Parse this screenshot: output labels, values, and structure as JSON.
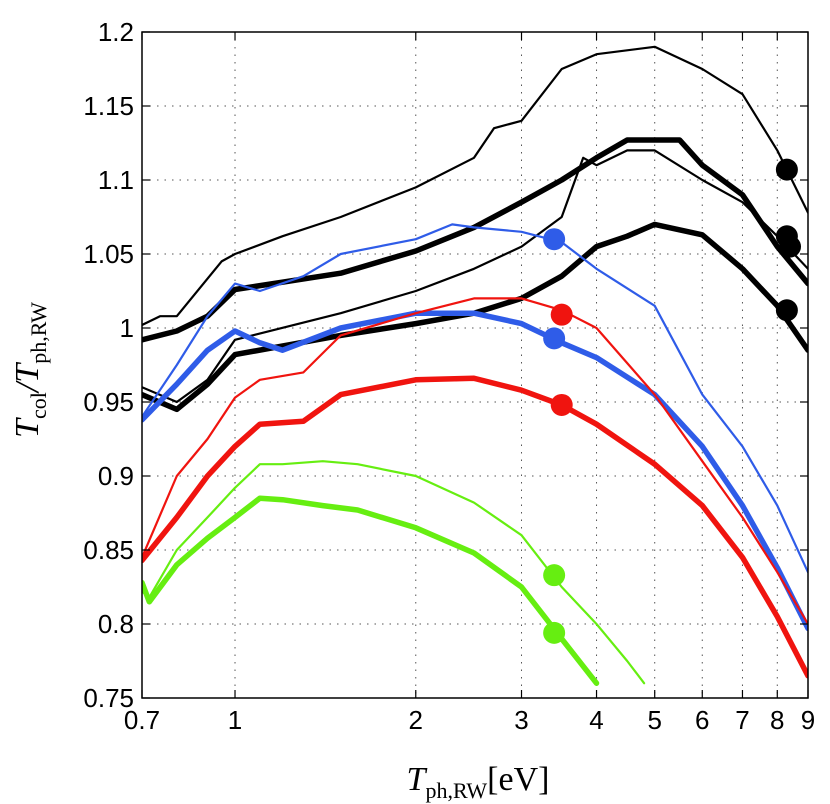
{
  "chart_data": {
    "type": "line",
    "title": "",
    "xscale": "log",
    "xlim": [
      0.7,
      9
    ],
    "ylim": [
      0.75,
      1.2
    ],
    "grid": true,
    "xticks": [
      0.7,
      1,
      2,
      3,
      4,
      5,
      6,
      7,
      8,
      9
    ],
    "xticklabels": [
      "0.7",
      "1",
      "2",
      "3",
      "4",
      "5",
      "6",
      "7",
      "8",
      "9"
    ],
    "yticks": [
      0.75,
      0.8,
      0.85,
      0.9,
      0.95,
      1.0,
      1.05,
      1.1,
      1.15,
      1.2
    ],
    "yticklabels": [
      "0.75",
      "0.8",
      "0.85",
      "0.9",
      "0.95",
      "1",
      "1.05",
      "1.1",
      "1.15",
      "1.2"
    ],
    "xlabel": {
      "main": "T",
      "sub": "ph,RW",
      "unit": "[eV]"
    },
    "ylabel": {
      "main": "T",
      "sub": "col",
      "mid": "/T",
      "sub2": "ph,RW"
    },
    "colors": {
      "black": "#000000",
      "blue": "#2f5ce8",
      "red": "#f0140f",
      "green": "#66ee11"
    },
    "series": [
      {
        "name": "black-thin-1",
        "color": "#000000",
        "width": "thin",
        "x": [
          0.7,
          0.75,
          0.8,
          0.95,
          1.0,
          1.2,
          1.5,
          2.0,
          2.5,
          2.7,
          3.0,
          3.5,
          4.0,
          5.0,
          6.0,
          7.0,
          8.0,
          9.0
        ],
        "y": [
          1.002,
          1.008,
          1.008,
          1.045,
          1.05,
          1.062,
          1.075,
          1.095,
          1.115,
          1.135,
          1.14,
          1.175,
          1.185,
          1.19,
          1.175,
          1.158,
          1.12,
          1.078
        ],
        "marker": {
          "x": 8.3,
          "y": 1.107
        }
      },
      {
        "name": "black-thin-2",
        "color": "#000000",
        "width": "thin",
        "x": [
          0.7,
          0.8,
          0.9,
          1.0,
          1.5,
          2.0,
          2.5,
          3.0,
          3.5,
          3.8,
          4.0,
          4.5,
          5.0,
          6.0,
          7.0,
          8.0,
          9.0
        ],
        "y": [
          0.96,
          0.95,
          0.965,
          0.992,
          1.01,
          1.025,
          1.04,
          1.055,
          1.075,
          1.115,
          1.11,
          1.12,
          1.12,
          1.1,
          1.085,
          1.062,
          1.04
        ],
        "marker": {
          "x": 8.3,
          "y": 1.062
        }
      },
      {
        "name": "black-thick-1",
        "color": "#000000",
        "width": "thick",
        "x": [
          0.7,
          0.8,
          0.9,
          1.0,
          1.5,
          2.0,
          2.5,
          3.0,
          3.5,
          4.0,
          4.5,
          5.0,
          5.5,
          6.0,
          7.0,
          8.0,
          9.0
        ],
        "y": [
          0.992,
          0.998,
          1.008,
          1.026,
          1.037,
          1.052,
          1.068,
          1.085,
          1.1,
          1.115,
          1.127,
          1.127,
          1.127,
          1.11,
          1.09,
          1.055,
          1.03
        ],
        "marker": {
          "x": 8.4,
          "y": 1.055
        }
      },
      {
        "name": "black-thick-2",
        "color": "#000000",
        "width": "thick",
        "x": [
          0.7,
          0.8,
          0.9,
          1.0,
          1.5,
          2.0,
          2.5,
          3.0,
          3.5,
          4.0,
          4.5,
          5.0,
          6.0,
          7.0,
          8.0,
          9.0
        ],
        "y": [
          0.955,
          0.945,
          0.962,
          0.982,
          0.995,
          1.003,
          1.01,
          1.02,
          1.035,
          1.055,
          1.062,
          1.07,
          1.063,
          1.04,
          1.015,
          0.985
        ],
        "marker": {
          "x": 8.3,
          "y": 1.012
        }
      },
      {
        "name": "blue-thin",
        "color": "#2f5ce8",
        "width": "thin",
        "x": [
          0.7,
          0.8,
          0.9,
          1.0,
          1.1,
          1.3,
          1.5,
          2.0,
          2.3,
          2.5,
          3.0,
          3.5,
          4.0,
          5.0,
          6.0,
          7.0,
          8.0,
          9.0
        ],
        "y": [
          0.94,
          0.975,
          1.008,
          1.03,
          1.025,
          1.035,
          1.05,
          1.06,
          1.07,
          1.068,
          1.065,
          1.058,
          1.04,
          1.015,
          0.955,
          0.92,
          0.88,
          0.835
        ],
        "marker": {
          "x": 3.4,
          "y": 1.06
        }
      },
      {
        "name": "blue-thick",
        "color": "#2f5ce8",
        "width": "thick",
        "x": [
          0.7,
          0.8,
          0.9,
          1.0,
          1.1,
          1.2,
          1.5,
          2.0,
          2.5,
          3.0,
          3.5,
          4.0,
          5.0,
          6.0,
          7.0,
          8.0,
          9.0
        ],
        "y": [
          0.938,
          0.962,
          0.985,
          0.998,
          0.99,
          0.985,
          1.0,
          1.01,
          1.01,
          1.003,
          0.99,
          0.98,
          0.955,
          0.92,
          0.88,
          0.838,
          0.797
        ],
        "marker": {
          "x": 3.4,
          "y": 0.993
        }
      },
      {
        "name": "red-thin",
        "color": "#f0140f",
        "width": "thin",
        "x": [
          0.7,
          0.8,
          0.9,
          1.0,
          1.1,
          1.3,
          1.5,
          2.0,
          2.5,
          3.0,
          3.5,
          4.0,
          5.0,
          6.0,
          7.0,
          8.0,
          9.0
        ],
        "y": [
          0.845,
          0.9,
          0.925,
          0.953,
          0.965,
          0.97,
          0.995,
          1.01,
          1.02,
          1.02,
          1.012,
          1.0,
          0.955,
          0.91,
          0.872,
          0.835,
          0.8
        ],
        "marker": {
          "x": 3.5,
          "y": 1.009
        }
      },
      {
        "name": "red-thick",
        "color": "#f0140f",
        "width": "thick",
        "x": [
          0.7,
          0.8,
          0.9,
          1.0,
          1.1,
          1.3,
          1.5,
          2.0,
          2.5,
          3.0,
          3.5,
          4.0,
          5.0,
          6.0,
          7.0,
          8.0,
          9.0
        ],
        "y": [
          0.843,
          0.872,
          0.9,
          0.92,
          0.935,
          0.937,
          0.955,
          0.965,
          0.966,
          0.958,
          0.948,
          0.935,
          0.908,
          0.88,
          0.845,
          0.805,
          0.765
        ],
        "marker": {
          "x": 3.5,
          "y": 0.948
        }
      },
      {
        "name": "green-thin",
        "color": "#66ee11",
        "width": "thin",
        "x": [
          0.7,
          0.72,
          0.8,
          0.9,
          1.0,
          1.1,
          1.2,
          1.4,
          1.6,
          2.0,
          2.5,
          3.0,
          3.5,
          4.0,
          4.5,
          4.8
        ],
        "y": [
          0.822,
          0.818,
          0.85,
          0.872,
          0.892,
          0.908,
          0.908,
          0.91,
          0.908,
          0.9,
          0.882,
          0.86,
          0.825,
          0.8,
          0.775,
          0.76
        ],
        "marker": {
          "x": 3.4,
          "y": 0.833
        }
      },
      {
        "name": "green-thick",
        "color": "#66ee11",
        "width": "thick",
        "x": [
          0.7,
          0.72,
          0.8,
          0.9,
          1.0,
          1.1,
          1.2,
          1.4,
          1.6,
          2.0,
          2.5,
          3.0,
          3.5,
          4.0
        ],
        "y": [
          0.828,
          0.815,
          0.84,
          0.858,
          0.872,
          0.885,
          0.884,
          0.88,
          0.877,
          0.865,
          0.848,
          0.825,
          0.79,
          0.76
        ],
        "marker": {
          "x": 3.4,
          "y": 0.794
        }
      }
    ]
  }
}
